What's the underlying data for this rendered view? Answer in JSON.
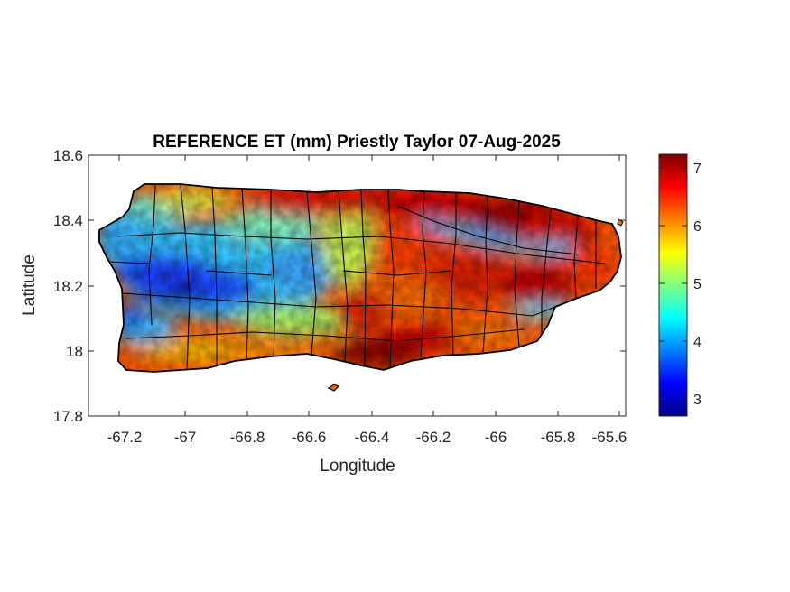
{
  "figure": {
    "title": "REFERENCE ET (mm) Priestly Taylor 07-Aug-2025",
    "xlabel": "Longitude",
    "ylabel": "Latitude",
    "xticks": [
      "-67.2",
      "-67",
      "-66.8",
      "-66.6",
      "-66.4",
      "-66.2",
      "-66",
      "-65.8",
      "-65.6"
    ],
    "yticks": [
      "18.6",
      "18.4",
      "18.2",
      "18",
      "17.8"
    ],
    "colorbar_ticks": [
      "7",
      "6",
      "5",
      "4",
      "3"
    ]
  },
  "chart_data": {
    "type": "heatmap",
    "title": "REFERENCE ET (mm) Priestly Taylor 07-Aug-2025",
    "xlabel": "Longitude",
    "ylabel": "Latitude",
    "xlim": [
      -67.3,
      -65.58
    ],
    "ylim": [
      17.8,
      18.6
    ],
    "colormap": "jet",
    "clim": [
      2.7,
      7.25
    ],
    "colorbar_ticks": [
      3,
      4,
      5,
      6,
      7
    ],
    "region": "Puerto Rico",
    "pattern": "Low values (about 3-4 mm) across the west-central interior mountains; high values (about 6.5-7.2 mm) along the north coast, south-central coast and eastern half of the island."
  }
}
